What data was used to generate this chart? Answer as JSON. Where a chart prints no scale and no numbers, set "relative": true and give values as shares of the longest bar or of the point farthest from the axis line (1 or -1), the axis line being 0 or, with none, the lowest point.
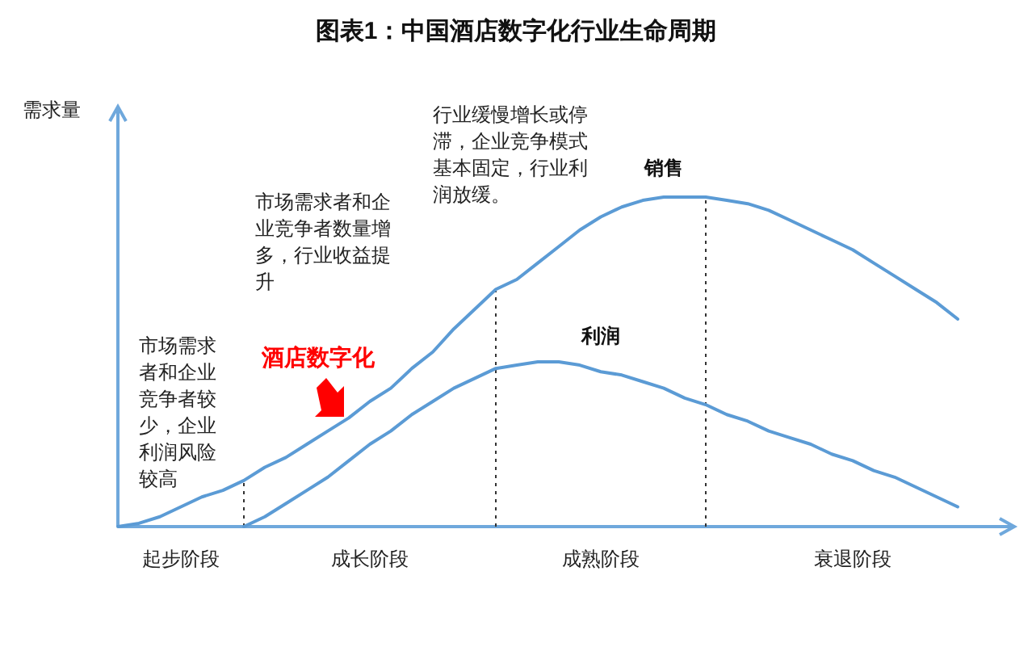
{
  "chart_data": {
    "type": "line",
    "title": "图表1：中国酒店数字化行业生命周期",
    "ylabel": "需求量",
    "relative": true,
    "categories": [
      null,
      null,
      null,
      "起步阶段",
      null,
      null,
      null,
      null,
      null,
      null,
      null,
      null,
      "成长阶段",
      null,
      null,
      null,
      null,
      null,
      null,
      null,
      null,
      null,
      null,
      "成熟阶段",
      null,
      null,
      null,
      null,
      null,
      null,
      null,
      null,
      null,
      null,
      null,
      "衰退阶段",
      null,
      null,
      null,
      null,
      null
    ],
    "series": [
      {
        "name": "销售",
        "color": "#5b9bd5",
        "values": [
          0,
          0.01,
          0.03,
          0.06,
          0.09,
          0.11,
          0.14,
          0.18,
          0.21,
          0.25,
          0.29,
          0.33,
          0.38,
          0.42,
          0.48,
          0.53,
          0.6,
          0.66,
          0.72,
          0.75,
          0.8,
          0.85,
          0.9,
          0.94,
          0.97,
          0.99,
          1,
          1,
          1,
          0.99,
          0.98,
          0.96,
          0.93,
          0.9,
          0.87,
          0.84,
          0.8,
          0.76,
          0.72,
          0.68,
          0.63
        ]
      },
      {
        "name": "利润",
        "color": "#5b9bd5",
        "values": [
          null,
          null,
          null,
          null,
          null,
          null,
          0,
          0.03,
          0.07,
          0.11,
          0.15,
          0.2,
          0.25,
          0.29,
          0.34,
          0.38,
          0.42,
          0.45,
          0.48,
          0.49,
          0.5,
          0.5,
          0.49,
          0.47,
          0.46,
          0.44,
          0.42,
          0.39,
          0.37,
          0.34,
          0.32,
          0.29,
          0.27,
          0.25,
          0.22,
          0.2,
          0.17,
          0.15,
          0.12,
          0.09,
          0.06
        ]
      }
    ],
    "annotations": [
      "市场需求者和企业竞争者较少，企业利润风险较高",
      "市场需求者和企业竞争者数量增多，行业收益提升",
      "行业缓慢增长或停滞，企业竞争模式基本固定，行业利润放缓。",
      "酒店数字化"
    ]
  }
}
